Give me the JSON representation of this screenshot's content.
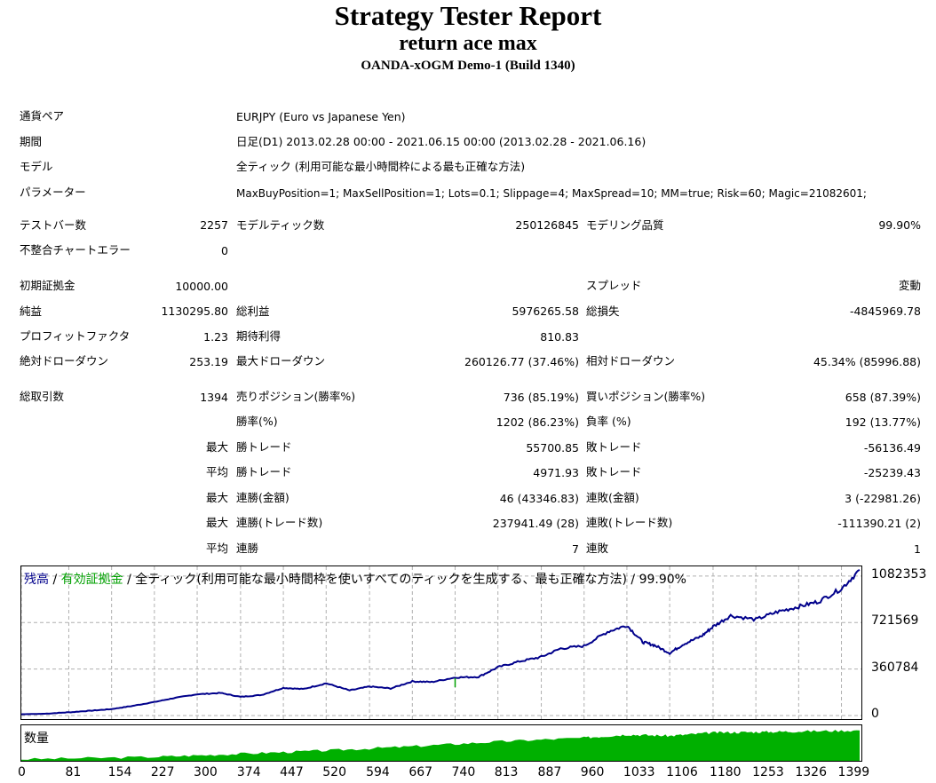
{
  "report": {
    "title": "Strategy Tester Report",
    "ea_name": "return ace max",
    "server": "OANDA-xOGM Demo-1 (Build 1340)"
  },
  "info": {
    "symbol_label": "通貨ペア",
    "symbol_value": "EURJPY (Euro vs Japanese Yen)",
    "period_label": "期間",
    "period_value": "日足(D1) 2013.02.28 00:00 - 2021.06.15 00:00 (2013.02.28 - 2021.06.16)",
    "model_label": "モデル",
    "model_value": "全ティック (利用可能な最小時間枠による最も正確な方法)",
    "params_label": "パラメーター",
    "params_value": "MaxBuyPosition=1; MaxSellPosition=1; Lots=0.1; Slippage=4; MaxSpread=10; MM=true; Risk=60; Magic=21082601;"
  },
  "stats": {
    "bars_label": "テストバー数",
    "bars_value": "2257",
    "ticks_label": "モデルティック数",
    "ticks_value": "250126845",
    "quality_label": "モデリング品質",
    "quality_value": "99.90%",
    "mismatch_label": "不整合チャートエラー",
    "mismatch_value": "0",
    "deposit_label": "初期証拠金",
    "deposit_value": "10000.00",
    "spread_label": "スプレッド",
    "spread_value": "変動",
    "net_label": "純益",
    "net_value": "1130295.80",
    "gross_profit_label": "総利益",
    "gross_profit_value": "5976265.58",
    "gross_loss_label": "総損失",
    "gross_loss_value": "-4845969.78",
    "pf_label": "プロフィットファクタ",
    "pf_value": "1.23",
    "payoff_label": "期待利得",
    "payoff_value": "810.83",
    "abs_dd_label": "絶対ドローダウン",
    "abs_dd_value": "253.19",
    "max_dd_label": "最大ドローダウン",
    "max_dd_value": "260126.77 (37.46%)",
    "rel_dd_label": "相対ドローダウン",
    "rel_dd_value": "45.34% (85996.88)",
    "trades_label": "総取引数",
    "trades_value": "1394",
    "short_label": "売りポジション(勝率%)",
    "short_value": "736 (85.19%)",
    "long_label": "買いポジション(勝率%)",
    "long_value": "658 (87.39%)",
    "win_label": "勝率(%)",
    "win_value": "1202 (86.23%)",
    "loss_label": "負率 (%)",
    "loss_value": "192 (13.77%)",
    "largest": "最大",
    "average": "平均",
    "win_trade_label": "勝トレード",
    "loss_trade_label": "敗トレード",
    "largest_win_value": "55700.85",
    "largest_loss_value": "-56136.49",
    "avg_win_value": "4971.93",
    "avg_loss_value": "-25239.43",
    "cons_win_money_label": "連勝(金額)",
    "cons_win_money_value": "46 (43346.83)",
    "cons_loss_money_label": "連敗(金額)",
    "cons_loss_money_value": "3 (-22981.26)",
    "cons_win_count_label": "連勝(トレード数)",
    "cons_win_count_value": "237941.49 (28)",
    "cons_loss_count_label": "連敗(トレード数)",
    "cons_loss_count_value": "-111390.21 (2)",
    "avg_win_streak_label": "連勝",
    "avg_win_streak_value": "7",
    "avg_loss_streak_label": "連敗",
    "avg_loss_streak_value": "1"
  },
  "chart_legend": {
    "balance": "残高",
    "sep1": " / ",
    "equity": "有効証拠金",
    "sep2": " / ",
    "rest": "全ティック(利用可能な最小時間枠を使いすべてのティックを生成する、最も正確な方法) / 99.90%",
    "volume": "数量"
  },
  "colors": {
    "balance": "#00008b",
    "equity": "#00a000",
    "volume": "#00b000",
    "grid": "#b0b0b0"
  },
  "chart_data": {
    "type": "line",
    "series": [
      {
        "name": "残高",
        "x": [
          0,
          40,
          81,
          120,
          154,
          190,
          227,
          260,
          300,
          340,
          374,
          410,
          447,
          480,
          520,
          560,
          594,
          630,
          667,
          700,
          740,
          780,
          813,
          850,
          887,
          920,
          960,
          1000,
          1033,
          1060,
          1080,
          1106,
          1130,
          1160,
          1180,
          1210,
          1253,
          1290,
          1326,
          1360,
          1399,
          1430
        ],
        "values": [
          10000,
          14000,
          25000,
          38000,
          50000,
          75000,
          105000,
          135000,
          165000,
          175000,
          145000,
          160000,
          215000,
          205000,
          250000,
          195000,
          225000,
          210000,
          265000,
          260000,
          295000,
          300000,
          375000,
          420000,
          455000,
          520000,
          540000,
          650000,
          700000,
          570000,
          545000,
          485000,
          555000,
          615000,
          690000,
          775000,
          745000,
          805000,
          845000,
          885000,
          985000,
          1130000
        ]
      }
    ],
    "x_ticks": [
      "0",
      "81",
      "154",
      "227",
      "300",
      "374",
      "447",
      "520",
      "594",
      "667",
      "740",
      "813",
      "887",
      "960",
      "1033",
      "1106",
      "1180",
      "1253",
      "1326",
      "1399"
    ],
    "y_ticks": [
      "1082353",
      "721569",
      "360784",
      "0"
    ],
    "ylim": [
      0,
      1130000
    ],
    "grid": true,
    "volume": {
      "name": "数量",
      "x": [
        0,
        227,
        374,
        520,
        667,
        813,
        960,
        1033,
        1106,
        1180,
        1253,
        1326,
        1430
      ],
      "values": [
        0.05,
        0.12,
        0.22,
        0.32,
        0.45,
        0.6,
        0.72,
        0.82,
        0.78,
        0.88,
        0.9,
        0.92,
        0.95
      ]
    }
  }
}
